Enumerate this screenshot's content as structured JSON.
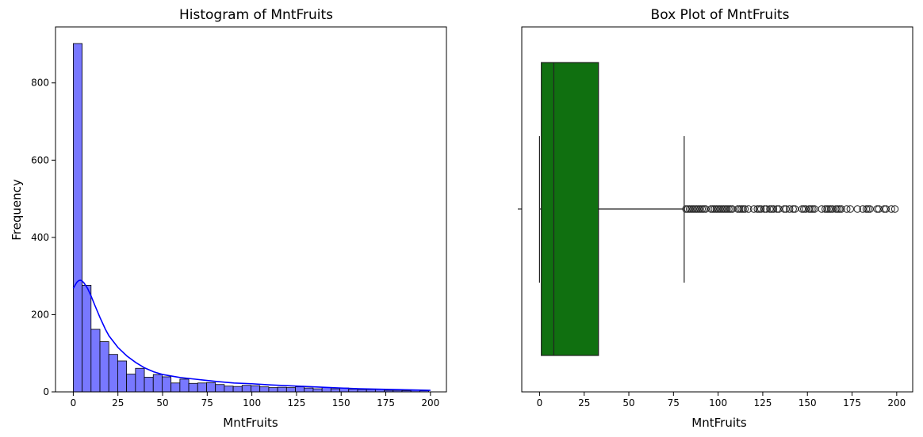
{
  "chart_data": [
    {
      "type": "bar",
      "title": "Histogram of MntFruits",
      "xlabel": "MntFruits",
      "ylabel": "Frequency",
      "xlim": [
        -9.95,
        208.95
      ],
      "ylim": [
        0,
        945
      ],
      "xticks": [
        0,
        25,
        50,
        75,
        100,
        125,
        150,
        175,
        200
      ],
      "yticks": [
        0,
        200,
        400,
        600,
        800
      ],
      "bin_width": 4.975,
      "bins_start": 0,
      "values": [
        902,
        276,
        162,
        130,
        97,
        80,
        46,
        61,
        38,
        45,
        39,
        23,
        33,
        22,
        23,
        24,
        19,
        15,
        14,
        17,
        16,
        13,
        11,
        12,
        11,
        13,
        10,
        8,
        11,
        8,
        10,
        7,
        6,
        6,
        6,
        4,
        4,
        3,
        4,
        3
      ],
      "bar_color": "#7878ff",
      "kde": {
        "color": "#0000ff",
        "x": [
          0,
          1,
          2,
          3,
          4,
          5,
          6,
          8,
          10,
          12,
          15,
          18,
          20,
          25,
          30,
          35,
          40,
          45,
          50,
          60,
          70,
          80,
          90,
          100,
          110,
          120,
          130,
          140,
          150,
          160,
          170,
          180,
          190,
          200
        ],
        "y": [
          268,
          276,
          284,
          288,
          289,
          287,
          282,
          268,
          248,
          225,
          192,
          162,
          145,
          115,
          93,
          76,
          62,
          52,
          45,
          37,
          32,
          27,
          23,
          21,
          18,
          16,
          14,
          12,
          10,
          8,
          7,
          6,
          5,
          4
        ]
      }
    },
    {
      "type": "box",
      "title": "Box Plot of MntFruits",
      "xlabel": "MntFruits",
      "xlim": [
        -9.95,
        208.95
      ],
      "xticks": [
        0,
        25,
        50,
        75,
        100,
        125,
        150,
        175,
        200
      ],
      "box_color": "#107010",
      "whisker_low": 0,
      "q1": 1,
      "median": 8,
      "q3": 33,
      "whisker_high": 81,
      "outliers": [
        82,
        83,
        84,
        85,
        86,
        87,
        88,
        89,
        90,
        91,
        92,
        93,
        96,
        97,
        98,
        99,
        100,
        101,
        102,
        103,
        104,
        105,
        106,
        107,
        108,
        111,
        112,
        113,
        114,
        115,
        117,
        120,
        122,
        123,
        124,
        126,
        127,
        129,
        130,
        131,
        133,
        134,
        137,
        138,
        140,
        142,
        143,
        147,
        148,
        149,
        151,
        152,
        153,
        154,
        158,
        160,
        161,
        162,
        163,
        164,
        166,
        167,
        168,
        169,
        172,
        174,
        178,
        181,
        183,
        184,
        185,
        189,
        190,
        193,
        194,
        197,
        199
      ]
    }
  ]
}
